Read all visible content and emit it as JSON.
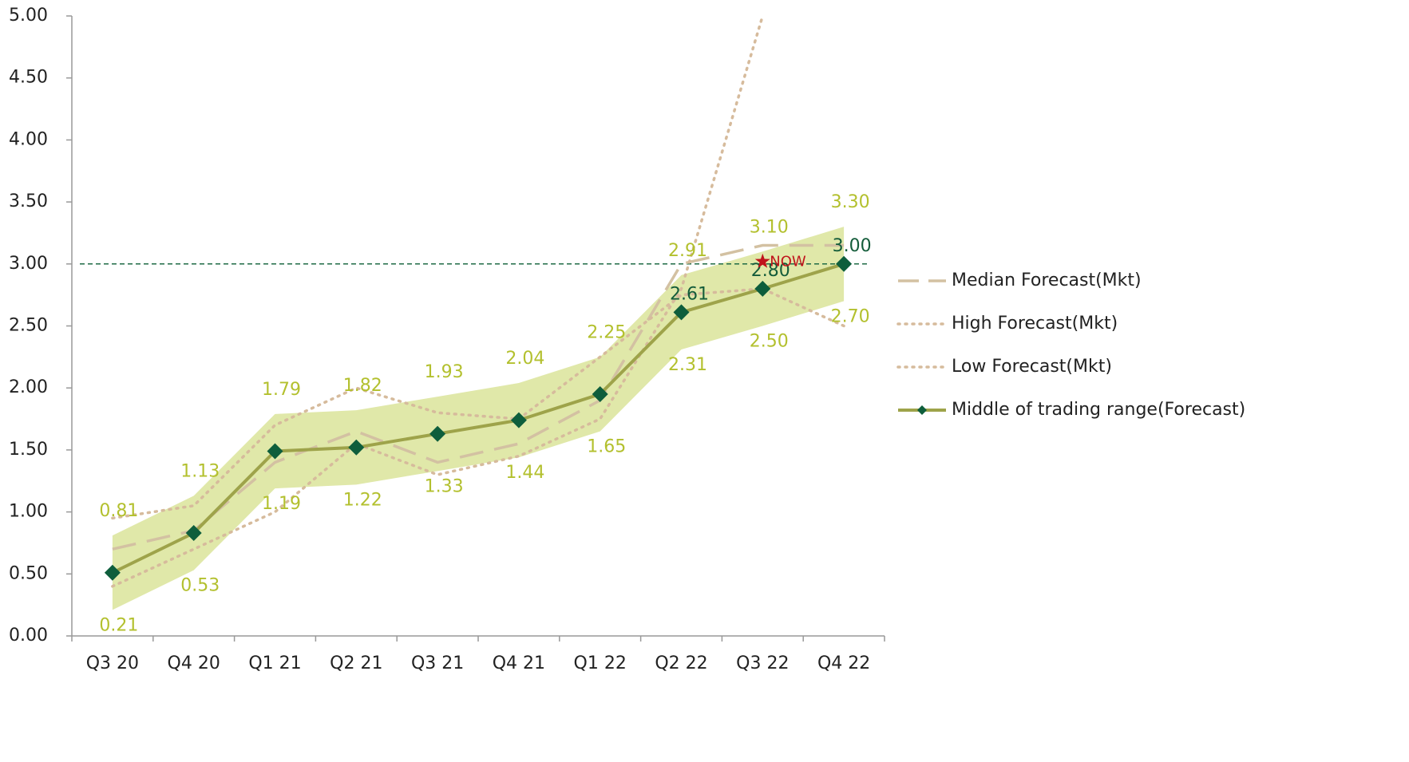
{
  "chart_data": {
    "type": "line",
    "categories": [
      "Q3 20",
      "Q4 20",
      "Q1 21",
      "Q2 21",
      "Q3 21",
      "Q4 21",
      "Q1 22",
      "Q2 22",
      "Q3 22",
      "Q4 22"
    ],
    "ylim": [
      0,
      5
    ],
    "yticks": [
      {
        "value": 0,
        "label": "0.00"
      },
      {
        "value": 0.5,
        "label": "0.50"
      },
      {
        "value": 1,
        "label": "1.00"
      },
      {
        "value": 1.5,
        "label": "1.50"
      },
      {
        "value": 2,
        "label": "2.00"
      },
      {
        "value": 2.5,
        "label": "2.50"
      },
      {
        "value": 3,
        "label": "3.00"
      },
      {
        "value": 3.5,
        "label": "3.50"
      },
      {
        "value": 4,
        "label": "4.00"
      },
      {
        "value": 4.5,
        "label": "4.50"
      },
      {
        "value": 5,
        "label": "5.00"
      }
    ],
    "band": {
      "color": "#e0e8a9",
      "label_color": "#b3c02e",
      "upper": [
        0.81,
        1.13,
        1.79,
        1.82,
        1.93,
        2.04,
        2.25,
        2.91,
        3.1,
        3.3
      ],
      "upper_labels": [
        "0.81",
        "1.13",
        "1.79",
        "1.82",
        "1.93",
        "2.04",
        "2.25",
        "2.91",
        "3.10",
        "3.30"
      ],
      "lower": [
        0.21,
        0.53,
        1.19,
        1.22,
        1.33,
        1.44,
        1.65,
        2.31,
        2.5,
        2.7
      ],
      "lower_labels": [
        "0.21",
        "0.53",
        "1.19",
        "1.22",
        "1.33",
        "1.44",
        "1.65",
        "2.31",
        "2.50",
        "2.70"
      ]
    },
    "series": [
      {
        "name": "Median Forecast(Mkt)",
        "color": "#d3c1a2",
        "style": "dashed",
        "values": [
          0.7,
          0.85,
          1.4,
          1.65,
          1.4,
          1.55,
          1.9,
          3.0,
          3.15,
          3.15
        ]
      },
      {
        "name": "High Forecast(Mkt)",
        "color": "#d6bb9c",
        "style": "dotted",
        "values": [
          0.95,
          1.05,
          1.7,
          2.0,
          1.8,
          1.75,
          2.25,
          2.75,
          2.8,
          2.5
        ]
      },
      {
        "name": "Low Forecast(Mkt)",
        "color": "#d6bb9c",
        "style": "dotted",
        "values": [
          0.4,
          0.7,
          1.0,
          1.55,
          1.3,
          1.45,
          1.75,
          2.8,
          5.0,
          null
        ]
      },
      {
        "name": "Middle of trading range(Forecast)",
        "color": "#9ea34a",
        "marker_color": "#0e5e3c",
        "style": "solid",
        "values": [
          0.51,
          0.83,
          1.49,
          1.52,
          1.63,
          1.74,
          1.95,
          2.61,
          2.8,
          3.0
        ],
        "value_labels": [
          null,
          null,
          null,
          null,
          null,
          null,
          null,
          "2.61",
          "2.80",
          "3.00"
        ],
        "label_color": "#145c3a"
      }
    ],
    "reference_line": {
      "value": 3.0,
      "color": "#1f6b45"
    },
    "now_marker": {
      "category_index": 8,
      "value": 3.02,
      "label": "NOW",
      "color": "#c0141c"
    }
  }
}
